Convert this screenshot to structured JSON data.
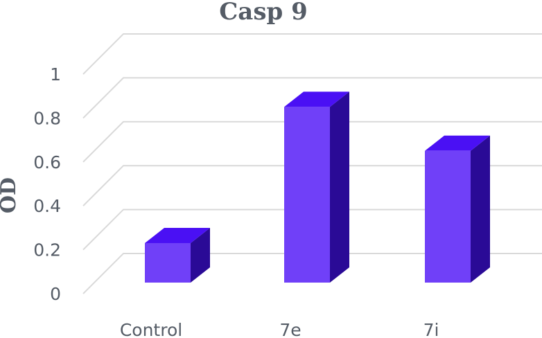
{
  "chart_data": {
    "type": "bar",
    "title": "Casp 9",
    "xlabel": "",
    "ylabel": "OD",
    "categories": [
      "Control",
      "7e",
      "7i"
    ],
    "values": [
      0.18,
      0.8,
      0.6
    ],
    "ylim": [
      0,
      1
    ],
    "yticks": [
      "0",
      "0.2",
      "0.4",
      "0.6",
      "0.8",
      "1"
    ],
    "grid": true,
    "legend": "none",
    "colors": {
      "front": "#7040f8",
      "top": "#4a10f4",
      "side": "#2a0a96",
      "text": "#555c66",
      "grid": "#d9d9d9"
    }
  }
}
